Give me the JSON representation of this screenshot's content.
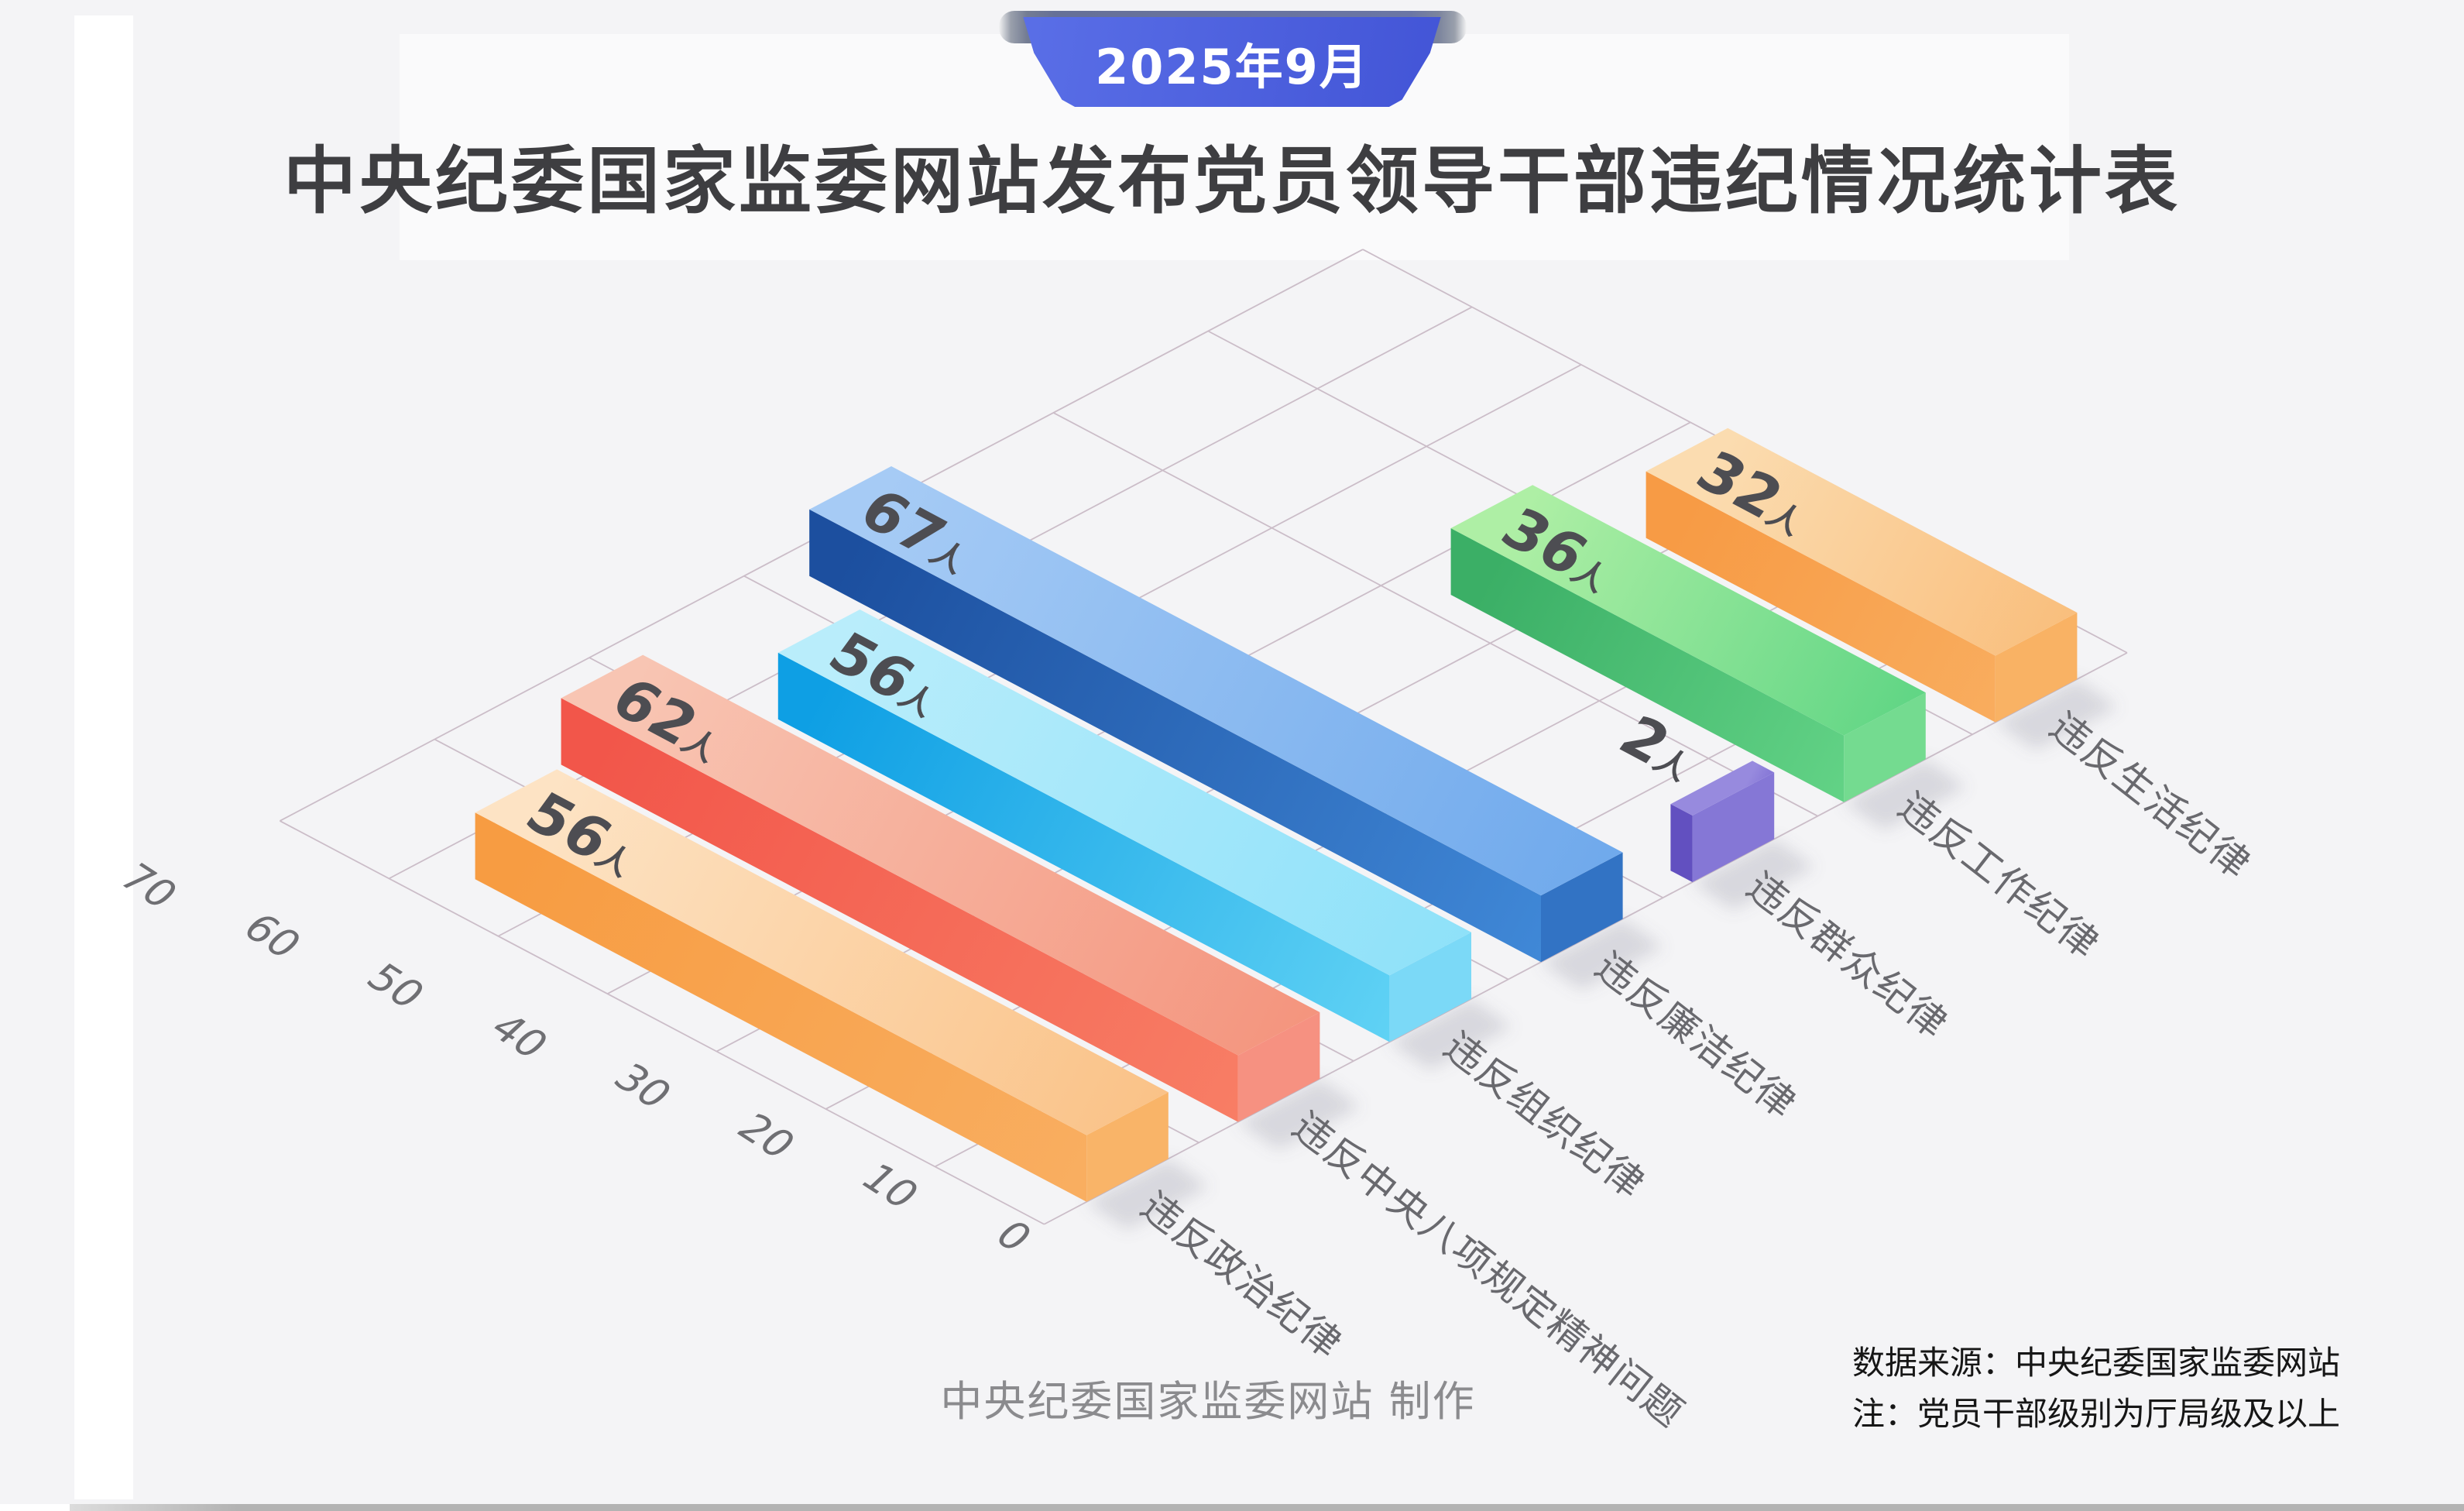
{
  "badge": {
    "label": "2025年9月"
  },
  "title": "中央纪委国家监委网站发布党员领导干部违纪情况统计表",
  "footer": {
    "credit": "中央纪委国家监委网站 制作"
  },
  "source_note": {
    "line1": "数据来源：中央纪委国家监委网站",
    "line2": "注：党员干部级别为厅局级及以上"
  },
  "colors": {
    "background": "#f4f4f6",
    "ribbon_gradient": [
      "#5A6FE7",
      "#4254D6"
    ],
    "ribbon_fold": "#6B76A5",
    "grid_line": "#CBBDC8",
    "value_label": "#4D4D52",
    "tick_label": "#6F6F73",
    "category_label": "#69696E",
    "title_text": "#3E3E41",
    "credit_text": "#8B8B8E",
    "source_text": "#161616"
  },
  "chart_data": {
    "type": "bar",
    "projection": "isometric-3d",
    "title": "中央纪委国家监委网站发布党员领导干部违纪情况统计表",
    "xlabel": "",
    "ylabel": "",
    "unit": "人",
    "ylim": [
      0,
      70
    ],
    "tick_step": 10,
    "ticks": [
      0,
      10,
      20,
      30,
      40,
      50,
      60,
      70
    ],
    "grid": true,
    "legend": "none",
    "categories": [
      "违反政治纪律",
      "违反中央八项规定精神问题",
      "违反组织纪律",
      "违反廉洁纪律",
      "违反群众纪律",
      "违反工作纪律",
      "违反生活纪律"
    ],
    "values": [
      56,
      62,
      56,
      67,
      2,
      36,
      32
    ],
    "value_labels": [
      "56人",
      "62人",
      "56人",
      "67人",
      "2人",
      "36人",
      "32人"
    ],
    "palette": [
      {
        "name": "orange",
        "top": [
          "#FDE3C4",
          "#FAC287"
        ],
        "side": [
          "#F79C42",
          "#F9AF62"
        ],
        "end": "#F9B468"
      },
      {
        "name": "red",
        "top": [
          "#F8C5B3",
          "#F4947D"
        ],
        "side": [
          "#F2564A",
          "#F87F66"
        ],
        "end": "#F69181"
      },
      {
        "name": "cyan",
        "top": [
          "#B9EDFB",
          "#8EE1F9"
        ],
        "side": [
          "#0E9FE4",
          "#63D4F5"
        ],
        "end": "#7BD9F7"
      },
      {
        "name": "blue",
        "top": [
          "#A6CBF5",
          "#6FA9EC"
        ],
        "side": [
          "#1C4F9F",
          "#418AD9"
        ],
        "end": "#3273C4"
      },
      {
        "name": "purple",
        "top": [
          "#978ADE",
          "#8071D4"
        ],
        "side": [
          "#6250C0",
          "#7E6DD2"
        ],
        "end": "#8577D6"
      },
      {
        "name": "green",
        "top": [
          "#AEEFA5",
          "#5FD584"
        ],
        "side": [
          "#3BAF66",
          "#65D588"
        ],
        "end": "#74DB90"
      },
      {
        "name": "orange-light",
        "top": [
          "#FBDCB0",
          "#F9BE7C"
        ],
        "side": [
          "#F79B45",
          "#F9AE60"
        ],
        "end": "#F9B264"
      }
    ]
  }
}
